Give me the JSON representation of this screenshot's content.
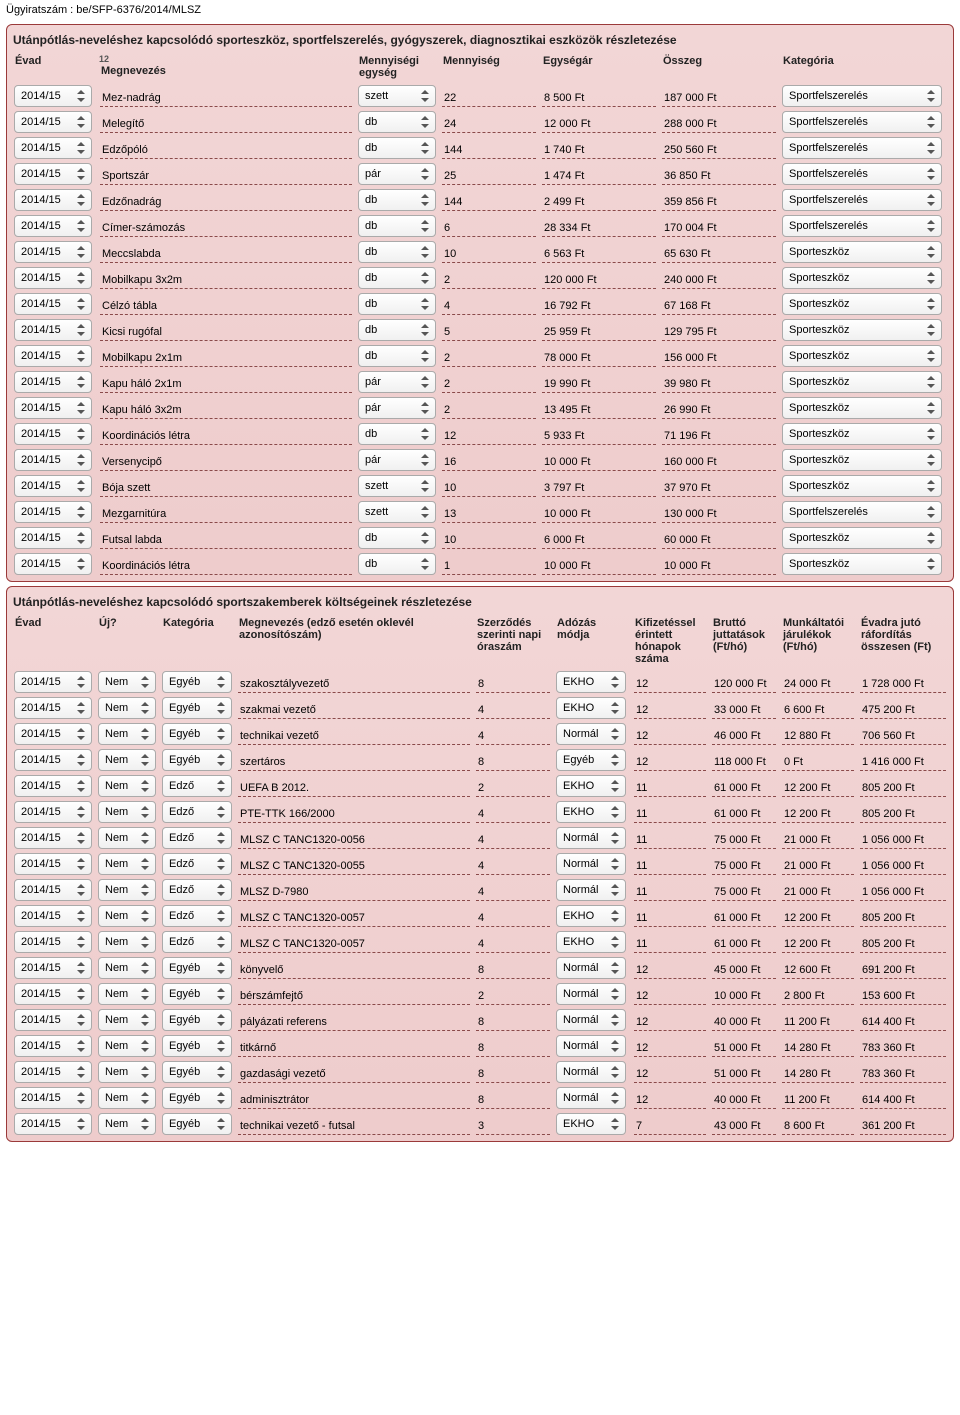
{
  "docNumber": "Ügyiratszám : be/SFP-6376/2014/MLSZ",
  "section1": {
    "title": "Utánpótlás-neveléshez kapcsolódó sporteszköz, sportfelszerelés, gyógyszerek, diagnosztikai eszközök részletezése",
    "headers": {
      "evad": "Évad",
      "megnevezes": "Megnevezés",
      "megnevezesNote": "12",
      "mennyEgyseg": "Mennyiségi egység",
      "mennyiseg": "Mennyiség",
      "egysegar": "Egységár",
      "osszeg": "Összeg",
      "kategoria": "Kategória"
    },
    "rows": [
      {
        "evad": "2014/15",
        "nev": "Mez-nadrág",
        "me": "szett",
        "m": "22",
        "ear": "8 500 Ft",
        "oss": "187 000  Ft",
        "kat": "Sportfelszerelés"
      },
      {
        "evad": "2014/15",
        "nev": "Melegítő",
        "me": "db",
        "m": "24",
        "ear": "12 000 Ft",
        "oss": "288 000  Ft",
        "kat": "Sportfelszerelés"
      },
      {
        "evad": "2014/15",
        "nev": "Edzőpóló",
        "me": "db",
        "m": "144",
        "ear": "1 740 Ft",
        "oss": "250 560  Ft",
        "kat": "Sportfelszerelés"
      },
      {
        "evad": "2014/15",
        "nev": "Sportszár",
        "me": "pár",
        "m": "25",
        "ear": "1 474 Ft",
        "oss": "36 850  Ft",
        "kat": "Sportfelszerelés"
      },
      {
        "evad": "2014/15",
        "nev": "Edzőnadrág",
        "me": "db",
        "m": "144",
        "ear": "2 499 Ft",
        "oss": "359 856  Ft",
        "kat": "Sportfelszerelés"
      },
      {
        "evad": "2014/15",
        "nev": "Címer-számozás",
        "me": "db",
        "m": "6",
        "ear": "28 334 Ft",
        "oss": "170 004  Ft",
        "kat": "Sportfelszerelés"
      },
      {
        "evad": "2014/15",
        "nev": "Meccslabda",
        "me": "db",
        "m": "10",
        "ear": "6 563 Ft",
        "oss": "65 630  Ft",
        "kat": "Sporteszköz"
      },
      {
        "evad": "2014/15",
        "nev": "Mobilkapu 3x2m",
        "me": "db",
        "m": "2",
        "ear": "120 000 Ft",
        "oss": "240 000  Ft",
        "kat": "Sporteszköz"
      },
      {
        "evad": "2014/15",
        "nev": "Célzó tábla",
        "me": "db",
        "m": "4",
        "ear": "16 792 Ft",
        "oss": "67 168  Ft",
        "kat": "Sporteszköz"
      },
      {
        "evad": "2014/15",
        "nev": "Kicsi rugófal",
        "me": "db",
        "m": "5",
        "ear": "25 959 Ft",
        "oss": "129 795  Ft",
        "kat": "Sporteszköz"
      },
      {
        "evad": "2014/15",
        "nev": "Mobilkapu 2x1m",
        "me": "db",
        "m": "2",
        "ear": "78 000 Ft",
        "oss": "156 000  Ft",
        "kat": "Sporteszköz"
      },
      {
        "evad": "2014/15",
        "nev": "Kapu háló 2x1m",
        "me": "pár",
        "m": "2",
        "ear": "19 990 Ft",
        "oss": "39 980  Ft",
        "kat": "Sporteszköz"
      },
      {
        "evad": "2014/15",
        "nev": "Kapu háló 3x2m",
        "me": "pár",
        "m": "2",
        "ear": "13 495 Ft",
        "oss": "26 990  Ft",
        "kat": "Sporteszköz"
      },
      {
        "evad": "2014/15",
        "nev": "Koordinációs létra",
        "me": "db",
        "m": "12",
        "ear": "5 933 Ft",
        "oss": "71 196  Ft",
        "kat": "Sporteszköz"
      },
      {
        "evad": "2014/15",
        "nev": "Versenycipő",
        "me": "pár",
        "m": "16",
        "ear": "10 000 Ft",
        "oss": "160 000  Ft",
        "kat": "Sporteszköz"
      },
      {
        "evad": "2014/15",
        "nev": "Bója szett",
        "me": "szett",
        "m": "10",
        "ear": "3 797 Ft",
        "oss": "37 970  Ft",
        "kat": "Sporteszköz"
      },
      {
        "evad": "2014/15",
        "nev": "Mezgarnitúra",
        "me": "szett",
        "m": "13",
        "ear": "10 000 Ft",
        "oss": "130 000  Ft",
        "kat": "Sportfelszerelés"
      },
      {
        "evad": "2014/15",
        "nev": "Futsal labda",
        "me": "db",
        "m": "10",
        "ear": "6 000 Ft",
        "oss": "60 000  Ft",
        "kat": "Sporteszköz"
      },
      {
        "evad": "2014/15",
        "nev": "Koordinációs létra",
        "me": "db",
        "m": "1",
        "ear": "10 000 Ft",
        "oss": "10 000  Ft",
        "kat": "Sporteszköz"
      }
    ]
  },
  "section2": {
    "title": "Utánpótlás-neveléshez kapcsolódó sportszakemberek költségeinek részletezése",
    "headers": {
      "evad": "Évad",
      "uj": "Új?",
      "kategoria": "Kategória",
      "megnevezes": "Megnevezés (edző esetén oklevél azonosítószám)",
      "szerzodes": "Szerződés szerinti napi óraszám",
      "adozas": "Adózás módja",
      "honap": "Kifizetéssel érintett hónapok száma",
      "brutto": "Bruttó juttatások (Ft/hó)",
      "jarulek": "Munkáltatói járulékok (Ft/hó)",
      "evadra": "Évadra jutó ráfordítás összesen (Ft)"
    },
    "rows": [
      {
        "evad": "2014/15",
        "uj": "Nem",
        "kat": "Egyéb",
        "nev": "szakosztályvezető",
        "sz": "8",
        "ad": "EKHO",
        "hon": "12",
        "br": "120 000 Ft",
        "jar": "24 000  Ft",
        "ev": "1 728 000  Ft"
      },
      {
        "evad": "2014/15",
        "uj": "Nem",
        "kat": "Egyéb",
        "nev": "szakmai vezető",
        "sz": "4",
        "ad": "EKHO",
        "hon": "12",
        "br": "33 000 Ft",
        "jar": "6 600  Ft",
        "ev": "475 200  Ft"
      },
      {
        "evad": "2014/15",
        "uj": "Nem",
        "kat": "Egyéb",
        "nev": "technikai vezető",
        "sz": "4",
        "ad": "Normál",
        "hon": "12",
        "br": "46 000 Ft",
        "jar": "12 880  Ft",
        "ev": "706 560  Ft"
      },
      {
        "evad": "2014/15",
        "uj": "Nem",
        "kat": "Egyéb",
        "nev": "szertáros",
        "sz": "8",
        "ad": "Egyéb",
        "hon": "12",
        "br": "118 000 Ft",
        "jar": "0  Ft",
        "ev": "1 416 000  Ft"
      },
      {
        "evad": "2014/15",
        "uj": "Nem",
        "kat": "Edző",
        "nev": "UEFA B 2012.",
        "sz": "2",
        "ad": "EKHO",
        "hon": "11",
        "br": "61 000 Ft",
        "jar": "12 200  Ft",
        "ev": "805 200  Ft"
      },
      {
        "evad": "2014/15",
        "uj": "Nem",
        "kat": "Edző",
        "nev": "PTE-TTK 166/2000",
        "sz": "4",
        "ad": "EKHO",
        "hon": "11",
        "br": "61 000 Ft",
        "jar": "12 200  Ft",
        "ev": "805 200  Ft"
      },
      {
        "evad": "2014/15",
        "uj": "Nem",
        "kat": "Edző",
        "nev": "MLSZ C TANC1320-0056",
        "sz": "4",
        "ad": "Normál",
        "hon": "11",
        "br": "75 000 Ft",
        "jar": "21 000  Ft",
        "ev": "1 056 000  Ft"
      },
      {
        "evad": "2014/15",
        "uj": "Nem",
        "kat": "Edző",
        "nev": "MLSZ C TANC1320-0055",
        "sz": "4",
        "ad": "Normál",
        "hon": "11",
        "br": "75 000 Ft",
        "jar": "21 000  Ft",
        "ev": "1 056 000  Ft"
      },
      {
        "evad": "2014/15",
        "uj": "Nem",
        "kat": "Edző",
        "nev": "MLSZ D-7980",
        "sz": "4",
        "ad": "Normál",
        "hon": "11",
        "br": "75 000 Ft",
        "jar": "21 000  Ft",
        "ev": "1 056 000  Ft"
      },
      {
        "evad": "2014/15",
        "uj": "Nem",
        "kat": "Edző",
        "nev": "MLSZ C TANC1320-0057",
        "sz": "4",
        "ad": "EKHO",
        "hon": "11",
        "br": "61 000 Ft",
        "jar": "12 200  Ft",
        "ev": "805 200  Ft"
      },
      {
        "evad": "2014/15",
        "uj": "Nem",
        "kat": "Edző",
        "nev": "MLSZ C TANC1320-0057",
        "sz": "4",
        "ad": "EKHO",
        "hon": "11",
        "br": "61 000 Ft",
        "jar": "12 200  Ft",
        "ev": "805 200  Ft"
      },
      {
        "evad": "2014/15",
        "uj": "Nem",
        "kat": "Egyéb",
        "nev": "könyvelő",
        "sz": "8",
        "ad": "Normál",
        "hon": "12",
        "br": "45 000 Ft",
        "jar": "12 600  Ft",
        "ev": "691 200  Ft"
      },
      {
        "evad": "2014/15",
        "uj": "Nem",
        "kat": "Egyéb",
        "nev": "bérszámfejtő",
        "sz": "2",
        "ad": "Normál",
        "hon": "12",
        "br": "10 000 Ft",
        "jar": "2 800  Ft",
        "ev": "153 600  Ft"
      },
      {
        "evad": "2014/15",
        "uj": "Nem",
        "kat": "Egyéb",
        "nev": "pályázati referens",
        "sz": "8",
        "ad": "Normál",
        "hon": "12",
        "br": "40 000 Ft",
        "jar": "11 200  Ft",
        "ev": "614 400  Ft"
      },
      {
        "evad": "2014/15",
        "uj": "Nem",
        "kat": "Egyéb",
        "nev": "titkárnő",
        "sz": "8",
        "ad": "Normál",
        "hon": "12",
        "br": "51 000 Ft",
        "jar": "14 280  Ft",
        "ev": "783 360  Ft"
      },
      {
        "evad": "2014/15",
        "uj": "Nem",
        "kat": "Egyéb",
        "nev": "gazdasági vezető",
        "sz": "8",
        "ad": "Normál",
        "hon": "12",
        "br": "51 000 Ft",
        "jar": "14 280  Ft",
        "ev": "783 360  Ft"
      },
      {
        "evad": "2014/15",
        "uj": "Nem",
        "kat": "Egyéb",
        "nev": "adminisztrátor",
        "sz": "8",
        "ad": "Normál",
        "hon": "12",
        "br": "40 000 Ft",
        "jar": "11 200  Ft",
        "ev": "614 400  Ft"
      },
      {
        "evad": "2014/15",
        "uj": "Nem",
        "kat": "Egyéb",
        "nev": "technikai vezető - futsal",
        "sz": "3",
        "ad": "EKHO",
        "hon": "7",
        "br": "43 000 Ft",
        "jar": "8 600  Ft",
        "ev": "361 200  Ft"
      }
    ]
  }
}
